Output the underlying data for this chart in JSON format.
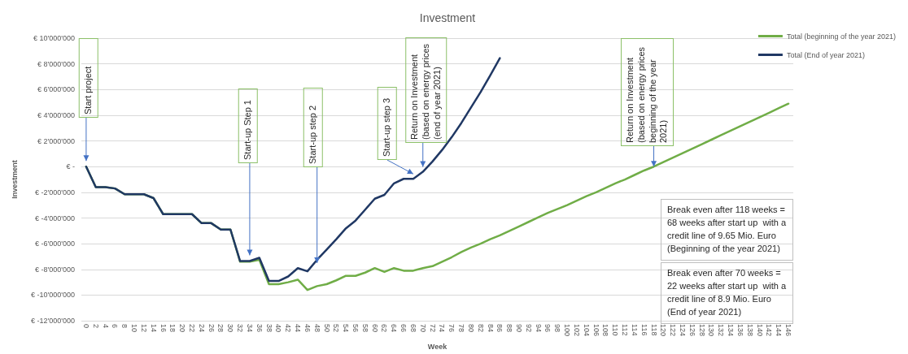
{
  "chart_data": {
    "type": "line",
    "title": "Investment",
    "xlabel": "Week",
    "ylabel": "Investment",
    "categories": [
      "0",
      "2",
      "4",
      "6",
      "8",
      "10",
      "12",
      "14",
      "16",
      "18",
      "20",
      "22",
      "24",
      "26",
      "28",
      "30",
      "32",
      "34",
      "36",
      "38",
      "40",
      "42",
      "44",
      "46",
      "48",
      "50",
      "52",
      "54",
      "56",
      "58",
      "60",
      "62",
      "64",
      "66",
      "68",
      "70",
      "72",
      "74",
      "76",
      "78",
      "80",
      "82",
      "84",
      "86",
      "88",
      "90",
      "92",
      "94",
      "96",
      "98",
      "100",
      "102",
      "104",
      "106",
      "108",
      "110",
      "112",
      "114",
      "116",
      "118",
      "120",
      "122",
      "124",
      "126",
      "128",
      "130",
      "132",
      "134",
      "136",
      "138",
      "140",
      "142",
      "144",
      "146"
    ],
    "series": [
      {
        "name": "Total (beginning of the year 2021)",
        "color": "#70ad47",
        "values": [
          0,
          -1600000,
          -1600000,
          -1700000,
          -2150000,
          -2150000,
          -2150000,
          -2450000,
          -3700000,
          -3700000,
          -3700000,
          -3700000,
          -4400000,
          -4400000,
          -4900000,
          -4900000,
          -7400000,
          -7400000,
          -7250000,
          -9150000,
          -9150000,
          -9000000,
          -8800000,
          -9600000,
          -9300000,
          -9150000,
          -8850000,
          -8500000,
          -8500000,
          -8250000,
          -7900000,
          -8200000,
          -7900000,
          -8100000,
          -8100000,
          -7900000,
          -7750000,
          -7400000,
          -7050000,
          -6650000,
          -6300000,
          -6000000,
          -5650000,
          -5350000,
          -5000000,
          -4650000,
          -4300000,
          -3950000,
          -3600000,
          -3300000,
          -3000000,
          -2650000,
          -2300000,
          -2000000,
          -1650000,
          -1300000,
          -1000000,
          -650000,
          -300000,
          0,
          350000,
          700000,
          1050000,
          1400000,
          1750000,
          2100000,
          2450000,
          2800000,
          3150000,
          3500000,
          3850000,
          4200000,
          4550000,
          4900000
        ]
      },
      {
        "name": "Total (End of year 2021)",
        "color": "#203864",
        "values": [
          0,
          -1600000,
          -1600000,
          -1700000,
          -2150000,
          -2150000,
          -2150000,
          -2450000,
          -3700000,
          -3700000,
          -3700000,
          -3700000,
          -4400000,
          -4400000,
          -4900000,
          -4900000,
          -7350000,
          -7350000,
          -7100000,
          -8900000,
          -8900000,
          -8550000,
          -7900000,
          -8150000,
          -7250000,
          -6450000,
          -5650000,
          -4800000,
          -4200000,
          -3350000,
          -2500000,
          -2200000,
          -1300000,
          -950000,
          -950000,
          -400000,
          400000,
          1300000,
          2300000,
          3400000,
          4600000,
          5800000,
          7100000,
          8450000,
          null,
          null,
          null,
          null,
          null,
          null,
          null,
          null,
          null,
          null,
          null,
          null,
          null,
          null,
          null,
          null,
          null,
          null,
          null,
          null,
          null,
          null,
          null,
          null,
          null,
          null,
          null,
          null,
          null,
          null
        ]
      }
    ],
    "ylim": [
      -12000000,
      10000000
    ],
    "yticks": [
      {
        "value": -12000000,
        "label": "€ -12'000'000"
      },
      {
        "value": -10000000,
        "label": "€ -10'000'000"
      },
      {
        "value": -8000000,
        "label": "€ -8'000'000"
      },
      {
        "value": -6000000,
        "label": "€ -6'000'000"
      },
      {
        "value": -4000000,
        "label": "€ -4'000'000"
      },
      {
        "value": -2000000,
        "label": "€ -2'000'000"
      },
      {
        "value": 0,
        "label": "€ -"
      },
      {
        "value": 2000000,
        "label": "€ 2'000'000"
      },
      {
        "value": 4000000,
        "label": "€ 4'000'000"
      },
      {
        "value": 6000000,
        "label": "€ 6'000'000"
      },
      {
        "value": 8000000,
        "label": "€ 8'000'000"
      },
      {
        "value": 10000000,
        "label": "€ 10'000'000"
      }
    ],
    "annotations": [
      {
        "text": "Start project",
        "x": "0",
        "y": 0
      },
      {
        "text": "Start-up Step 1",
        "x": "34",
        "y": -7350000
      },
      {
        "text": "Start-up step 2",
        "x": "48",
        "y": -7250000
      },
      {
        "text": "Start-up step 3",
        "x": "68",
        "y": -950000
      },
      {
        "text": "Return on Investment (based on energy prices (end of year 2021)",
        "x": "70",
        "y": -400000
      },
      {
        "text": "Return on Investment (based on energy prices beginning of the year 2021)",
        "x": "118",
        "y": 0
      },
      "Break even after 118 weeks = 68 weeks after start up  with a credit line of 9.65 Mio. Euro (Beginning of the year 2021)",
      "Break even after 70 weeks = 22 weeks after start up  with a credit line of 8.9 Mio. Euro (End of year 2021)"
    ],
    "grid": "y",
    "legend": "top right",
    "marker": "none",
    "line_style": "solid"
  }
}
